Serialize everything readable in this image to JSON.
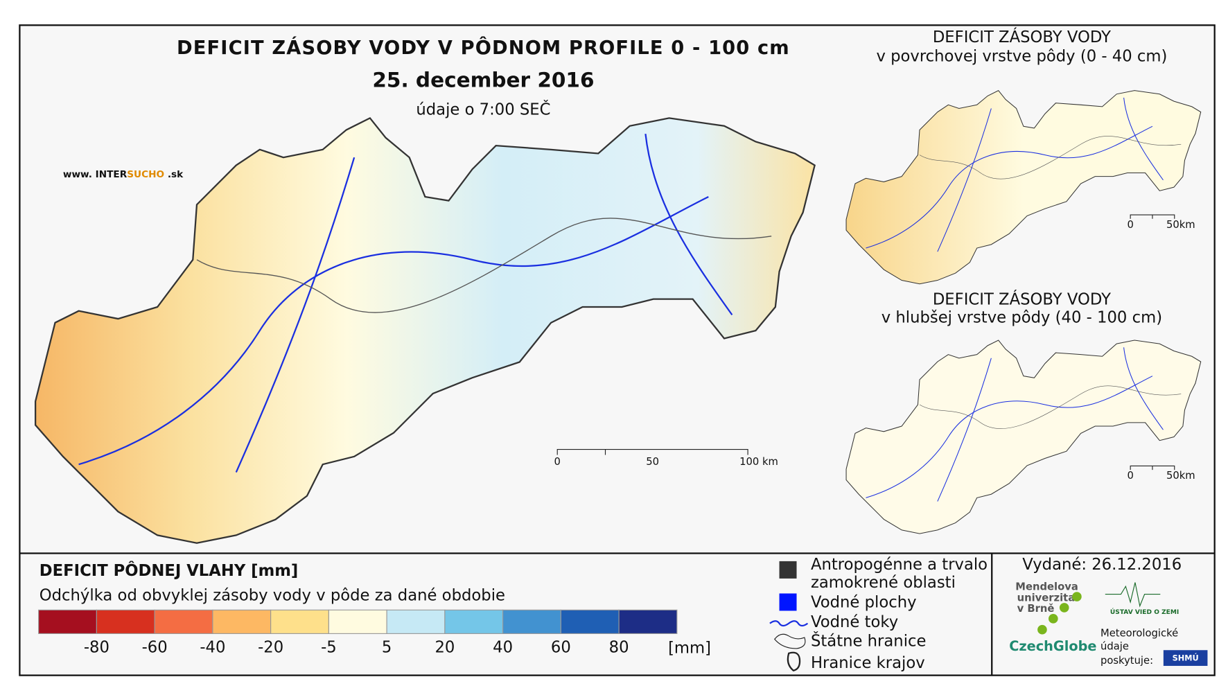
{
  "header": {
    "title": "DEFICIT ZÁSOBY VODY V PÔDNOM PROFILE 0 - 100 cm",
    "date": "25. december 2016",
    "time": "údaje o 7:00 SEČ"
  },
  "logo": [
    "www. INTER",
    "SUCHO",
    " .sk"
  ],
  "main_scale": [
    "0",
    "50",
    "100 km"
  ],
  "insets": [
    {
      "title": "DEFICIT ZÁSOBY VODY",
      "subtitle": "v povrchovej vrstve pôdy (0 - 40 cm)",
      "scale": [
        "0",
        "50km"
      ]
    },
    {
      "title": "DEFICIT ZÁSOBY VODY",
      "subtitle": "v hlubšej vrstve pôdy (40 - 100 cm)",
      "scale": [
        "0",
        "50km"
      ]
    }
  ],
  "legend": {
    "title": "DEFICIT PÔDNEJ VLAHY [mm]",
    "subtitle": "Odchýlka od obvyklej zásoby vody v pôde za dané obdobie",
    "colors": [
      "#a50f1f",
      "#d7301f",
      "#f46d43",
      "#fdb863",
      "#fee08b",
      "#fffbe0",
      "#c6e9f5",
      "#74c6e8",
      "#4292d0",
      "#1f5fb4",
      "#1d2d86"
    ],
    "ticks": [
      -80,
      -60,
      -40,
      -20,
      -5,
      5,
      20,
      40,
      60,
      80
    ],
    "unit": "[mm]"
  },
  "symbols": [
    "Antropogénne a trvalo",
    "zamokrené oblasti",
    "Vodné plochy",
    "Vodné toky",
    "Štátne hranice",
    "Hranice krajov"
  ],
  "issued": "Vydané: 26.12.2016",
  "partners": {
    "mendel": [
      "Mendelova",
      "univerzita",
      "v Brně"
    ],
    "czechglobe": "CzechGlobe",
    "uvgz": "ÚSTAV VIED O ZEMI",
    "meteo": [
      "Meteorologické",
      "údaje",
      "poskytuje:"
    ],
    "shmu": "SHMÚ"
  }
}
